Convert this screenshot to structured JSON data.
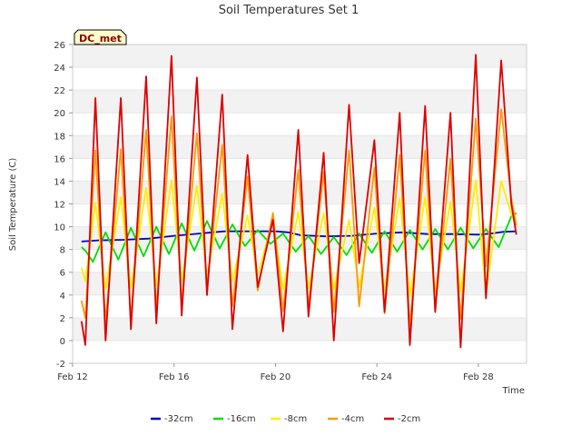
{
  "chart_data": {
    "type": "line",
    "title": "Soil Temperatures Set 1",
    "xlabel": "Time",
    "ylabel": "Soil Temperature (C)",
    "site_label": "DC_met",
    "x_unit": "day of February",
    "xlim": [
      12.0,
      29.9
    ],
    "ylim": [
      -2,
      26
    ],
    "yticks": [
      -2,
      0,
      2,
      4,
      6,
      8,
      10,
      12,
      14,
      16,
      18,
      20,
      22,
      24,
      26
    ],
    "xticks": [
      {
        "value": 12,
        "label": "Feb 12"
      },
      {
        "value": 16,
        "label": "Feb 16"
      },
      {
        "value": 20,
        "label": "Feb 20"
      },
      {
        "value": 24,
        "label": "Feb 24"
      },
      {
        "value": 28,
        "label": "Feb 28"
      }
    ],
    "grid": "horizontal bands",
    "legend": "bottom",
    "series": [
      {
        "name": "-32cm",
        "color": "#0000cc",
        "x": [
          12.35,
          13.0,
          14.0,
          15.0,
          16.0,
          17.0,
          17.5,
          18.0,
          19.0,
          20.0,
          20.5,
          21.0,
          22.0,
          23.0,
          24.0,
          25.0,
          26.0,
          27.0,
          28.0,
          28.5,
          29.0,
          29.5
        ],
        "y": [
          8.7,
          8.8,
          8.85,
          8.95,
          9.2,
          9.4,
          9.5,
          9.6,
          9.6,
          9.6,
          9.5,
          9.25,
          9.15,
          9.2,
          9.4,
          9.5,
          9.35,
          9.35,
          9.3,
          9.4,
          9.55,
          9.6
        ]
      },
      {
        "name": "-16cm",
        "color": "#00dd00",
        "x": [
          12.35,
          12.5,
          12.8,
          13.3,
          13.8,
          14.3,
          14.8,
          15.3,
          15.8,
          16.3,
          16.8,
          17.3,
          17.8,
          18.3,
          18.8,
          19.3,
          19.8,
          20.3,
          20.8,
          21.3,
          21.8,
          22.3,
          22.8,
          23.3,
          23.8,
          24.3,
          24.8,
          25.3,
          25.8,
          26.3,
          26.8,
          27.3,
          27.8,
          28.3,
          28.8,
          29.3,
          29.5
        ],
        "y": [
          8.2,
          7.9,
          6.9,
          9.5,
          7.1,
          9.9,
          7.4,
          10.0,
          7.6,
          10.3,
          7.9,
          10.5,
          8.1,
          10.2,
          8.3,
          9.7,
          8.5,
          9.4,
          7.8,
          9.2,
          7.6,
          9.1,
          7.5,
          9.4,
          7.7,
          9.6,
          7.8,
          9.7,
          8.0,
          9.8,
          8.0,
          9.9,
          8.1,
          9.8,
          8.2,
          10.9,
          11.2
        ]
      },
      {
        "name": "-8cm",
        "color": "#ffee00",
        "x": [
          12.35,
          12.5,
          12.9,
          13.3,
          13.9,
          14.3,
          14.9,
          15.3,
          15.9,
          16.3,
          16.9,
          17.3,
          17.9,
          18.3,
          18.9,
          19.3,
          19.9,
          20.3,
          20.9,
          21.3,
          21.9,
          22.3,
          22.9,
          23.3,
          23.9,
          24.3,
          24.9,
          25.3,
          25.9,
          26.3,
          26.9,
          27.3,
          27.9,
          28.3,
          28.9,
          29.3,
          29.5
        ],
        "y": [
          6.4,
          5.2,
          12.1,
          4.5,
          12.6,
          4.6,
          13.4,
          4.8,
          14.1,
          5.2,
          13.6,
          5.6,
          12.9,
          5.2,
          11.0,
          5.8,
          10.6,
          4.5,
          11.3,
          4.6,
          11.2,
          4.5,
          10.6,
          4.7,
          11.7,
          4.4,
          12.5,
          3.9,
          12.6,
          4.3,
          12.2,
          4.3,
          14.1,
          4.0,
          14.0,
          11.1,
          10.1
        ]
      },
      {
        "name": "-4cm",
        "color": "#ff9900",
        "x": [
          12.35,
          12.5,
          12.9,
          13.3,
          13.9,
          14.3,
          14.9,
          15.3,
          15.9,
          16.3,
          16.9,
          17.3,
          17.9,
          18.3,
          18.9,
          19.3,
          19.9,
          20.3,
          20.9,
          21.3,
          21.9,
          22.3,
          22.9,
          23.3,
          23.9,
          24.3,
          24.9,
          25.3,
          25.9,
          26.3,
          26.9,
          27.3,
          27.9,
          28.3,
          28.9,
          29.3,
          29.5
        ],
        "y": [
          3.5,
          2.0,
          16.7,
          1.6,
          16.8,
          2.0,
          18.5,
          2.8,
          19.7,
          3.2,
          18.2,
          4.7,
          17.2,
          3.0,
          14.4,
          4.4,
          11.2,
          2.6,
          15.0,
          3.0,
          14.8,
          2.5,
          16.7,
          3.0,
          15.2,
          2.4,
          16.3,
          1.3,
          16.7,
          2.8,
          16.0,
          1.9,
          19.5,
          6.5,
          20.3,
          12.5,
          10.1
        ]
      },
      {
        "name": "-2cm",
        "color": "#dd0000",
        "x": [
          12.35,
          12.5,
          12.9,
          13.3,
          13.9,
          14.3,
          14.9,
          15.3,
          15.9,
          16.3,
          16.9,
          17.3,
          17.9,
          18.3,
          18.9,
          19.3,
          19.9,
          20.3,
          20.9,
          21.3,
          21.9,
          22.3,
          22.9,
          23.3,
          23.9,
          24.3,
          24.9,
          25.3,
          25.9,
          26.3,
          26.9,
          27.3,
          27.9,
          28.3,
          28.9,
          29.3,
          29.5
        ],
        "y": [
          1.7,
          -0.4,
          21.3,
          0.0,
          21.3,
          1.0,
          23.2,
          1.5,
          25.0,
          2.2,
          23.1,
          4.0,
          21.6,
          1.0,
          16.3,
          4.7,
          10.6,
          0.8,
          18.5,
          2.1,
          16.5,
          0.0,
          20.7,
          6.8,
          17.6,
          2.5,
          20.0,
          -0.4,
          20.6,
          2.5,
          20.0,
          -0.6,
          25.1,
          3.7,
          24.6,
          12.0,
          9.3
        ]
      }
    ]
  }
}
